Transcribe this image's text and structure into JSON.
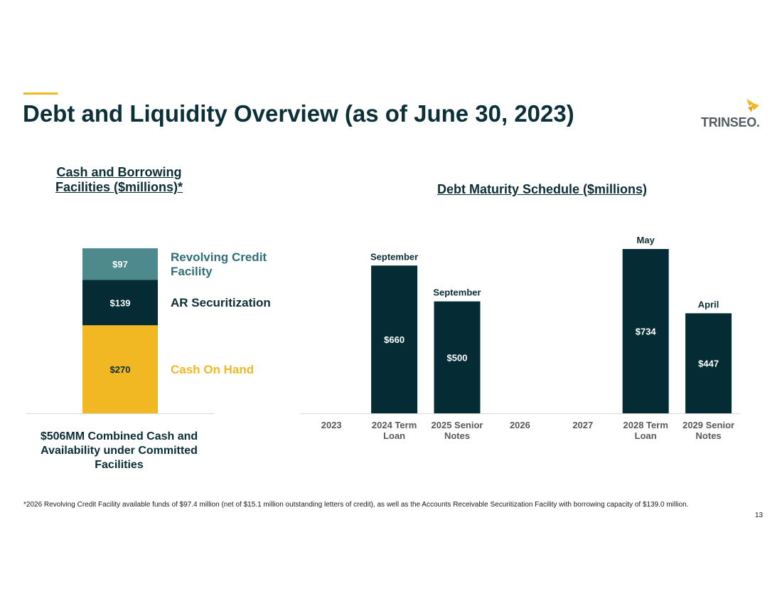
{
  "title": "Debt and Liquidity Overview (as of June 30, 2023)",
  "logo": {
    "text": "TRINSEO.",
    "icon": "trinseo-arrow-icon"
  },
  "left_section_title": "Cash and Borrowing Facilities ($millions)*",
  "right_section_title": "Debt Maturity Schedule ($millions)",
  "combined_text": "$506MM Combined Cash and Availability under Committed Facilities",
  "footnote": "*2026 Revolving Credit Facility available funds of $97.4 million (net of $15.1 million outstanding letters of credit), as well as the Accounts Receivable Securitization Facility with borrowing capacity of $139.0 million.",
  "page_number": "13",
  "colors": {
    "accent": "#f2b824",
    "dark": "#052c35",
    "teal": "#4e8a8d",
    "teal_text": "#2f6f75",
    "yellow": "#f2b824"
  },
  "chart_data": [
    {
      "type": "bar",
      "stacked": true,
      "title": "Cash and Borrowing Facilities ($millions)*",
      "categories": [
        ""
      ],
      "series": [
        {
          "name": "Cash On Hand",
          "values": [
            270
          ],
          "label": "$270",
          "color": "#f2b824",
          "label_color": "#0b2d35",
          "legend_color": "#f2b824"
        },
        {
          "name": "AR Securitization",
          "values": [
            139
          ],
          "label": "$139",
          "color": "#052c35",
          "label_color": "#ffffff",
          "legend_color": "#0b2d35"
        },
        {
          "name": "Revolving Credit Facility",
          "values": [
            97
          ],
          "label": "$97",
          "color": "#4e8a8d",
          "label_color": "#ffffff",
          "legend_color": "#2f6f75"
        }
      ],
      "total": 506
    },
    {
      "type": "bar",
      "title": "Debt Maturity Schedule ($millions)",
      "categories": [
        "2023",
        "2024 Term Loan",
        "2025 Senior Notes",
        "2026",
        "2027",
        "2028 Term Loan",
        "2029 Senior Notes"
      ],
      "values": [
        0,
        660,
        500,
        0,
        0,
        734,
        447
      ],
      "value_labels": [
        "",
        "$660",
        "$500",
        "",
        "",
        "$734",
        "$447"
      ],
      "month_labels": [
        "",
        "September",
        "September",
        "",
        "",
        "May",
        "April"
      ],
      "ylim": [
        0,
        734
      ]
    }
  ]
}
